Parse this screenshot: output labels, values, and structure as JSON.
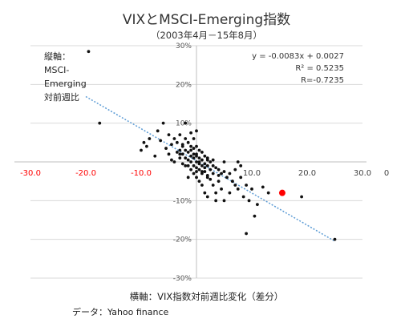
{
  "title": "VIXとMSCI-Emerging指数",
  "subtitle": "（2003年4月－15年8月）",
  "source": "データ：Yahoo finance",
  "chart_data": {
    "type": "scatter",
    "title": "VIXとMSCI-Emerging指数",
    "subtitle": "（2003年4月－15年8月）",
    "xlabel": "横軸：VIX指数対前週比変化（差分）",
    "ylabel": "縦軸：MSCI-Emerging対前週比",
    "xlim": [
      -30,
      30
    ],
    "ylim": [
      -30,
      30
    ],
    "x_ticks": [
      "-30.0",
      "-20.0",
      "-10.0",
      "0.0",
      "10.0",
      "20.0",
      "30.0"
    ],
    "y_ticks": [
      "30%",
      "20%",
      "10%",
      "0%",
      "-10%",
      "-20%",
      "-30%"
    ],
    "extra_x_label": "0",
    "grid": "horizontal",
    "colors": {
      "points": "#111111",
      "highlight": "#ff0000",
      "trendline": "#5b9bd5",
      "negative_ticks": "#ff0000",
      "positive_ticks": "#444444"
    },
    "trendline": {
      "slope": -0.0083,
      "intercept": 0.0027,
      "x_range": [
        -20,
        25
      ]
    },
    "annotations": {
      "equation": "y = -0.0083x + 0.0027",
      "r_squared": "R² = 0.5235",
      "r": "R=-0.7235"
    },
    "highlight_point": {
      "x": 15.5,
      "y": -8
    },
    "series": [
      {
        "x": [
          -19.5,
          -17.5,
          -10,
          -9.5,
          -9,
          -8.5,
          -7.5,
          -7,
          -6.5,
          -6,
          -5.5,
          -5,
          -5,
          -4.5,
          -4,
          -4,
          -3.5,
          -3.5,
          -3,
          -3,
          -3,
          -2.5,
          -2.5,
          -2.5,
          -2,
          -2,
          -2,
          -2,
          -1.5,
          -1.5,
          -1.5,
          -1.5,
          -1,
          -1,
          -1,
          -1,
          -1,
          -0.5,
          -0.5,
          -0.5,
          -0.5,
          -0.5,
          0,
          0,
          0,
          0,
          0,
          0,
          0.5,
          0.5,
          0.5,
          0.5,
          0.5,
          1,
          1,
          1,
          1,
          1,
          1.5,
          1.5,
          1.5,
          1.5,
          2,
          2,
          2,
          2,
          2.5,
          2.5,
          2.5,
          3,
          3,
          3,
          3.5,
          3.5,
          4,
          4,
          4.5,
          4.5,
          5,
          5,
          5.5,
          6,
          6,
          6.5,
          7,
          7,
          7.5,
          8,
          8,
          8.5,
          9,
          9,
          9.5,
          10,
          10.5,
          11,
          12,
          13,
          19,
          25,
          -3,
          -2,
          -1,
          0,
          1,
          2,
          -1.5,
          -0.5,
          0.5,
          1.5,
          3,
          4,
          -2.5,
          0,
          2,
          5,
          7.5,
          6.5,
          3.5,
          -4.5
        ],
        "y": [
          28.5,
          10,
          3,
          5,
          4,
          6,
          1.5,
          8,
          5.5,
          10,
          3.5,
          7,
          2,
          4.5,
          6,
          0,
          5,
          2.5,
          7,
          3,
          1,
          4.5,
          2,
          -0.5,
          10,
          6,
          3,
          1,
          5,
          2.5,
          0.5,
          -1,
          7.5,
          4,
          1.5,
          0,
          -2,
          6,
          3.5,
          1,
          -1,
          -3,
          8,
          4,
          2,
          0,
          -1.5,
          -4,
          3,
          1,
          -0.5,
          -2,
          -5,
          2.5,
          0.5,
          -1,
          -3,
          -6,
          1.5,
          -0.5,
          -2.5,
          -8,
          1,
          -1,
          -3.5,
          -9,
          0,
          -2,
          -4.5,
          -1,
          -3,
          -6,
          -1.5,
          -10,
          -2,
          -5,
          -3,
          -7,
          -2.5,
          -10,
          -4,
          -3,
          -8,
          -5,
          -2,
          -6,
          -7,
          -1,
          -4,
          -9,
          -6,
          -18.5,
          -10,
          -7,
          -14,
          -11,
          -6.5,
          -8,
          -9,
          -20,
          2,
          -1,
          3,
          1.5,
          -2.5,
          0.5,
          -4,
          2,
          0,
          -1.5,
          0.5,
          -3.5,
          4,
          -2.5,
          -4,
          0,
          0,
          -5,
          -8,
          0.5
        ]
      }
    ]
  }
}
